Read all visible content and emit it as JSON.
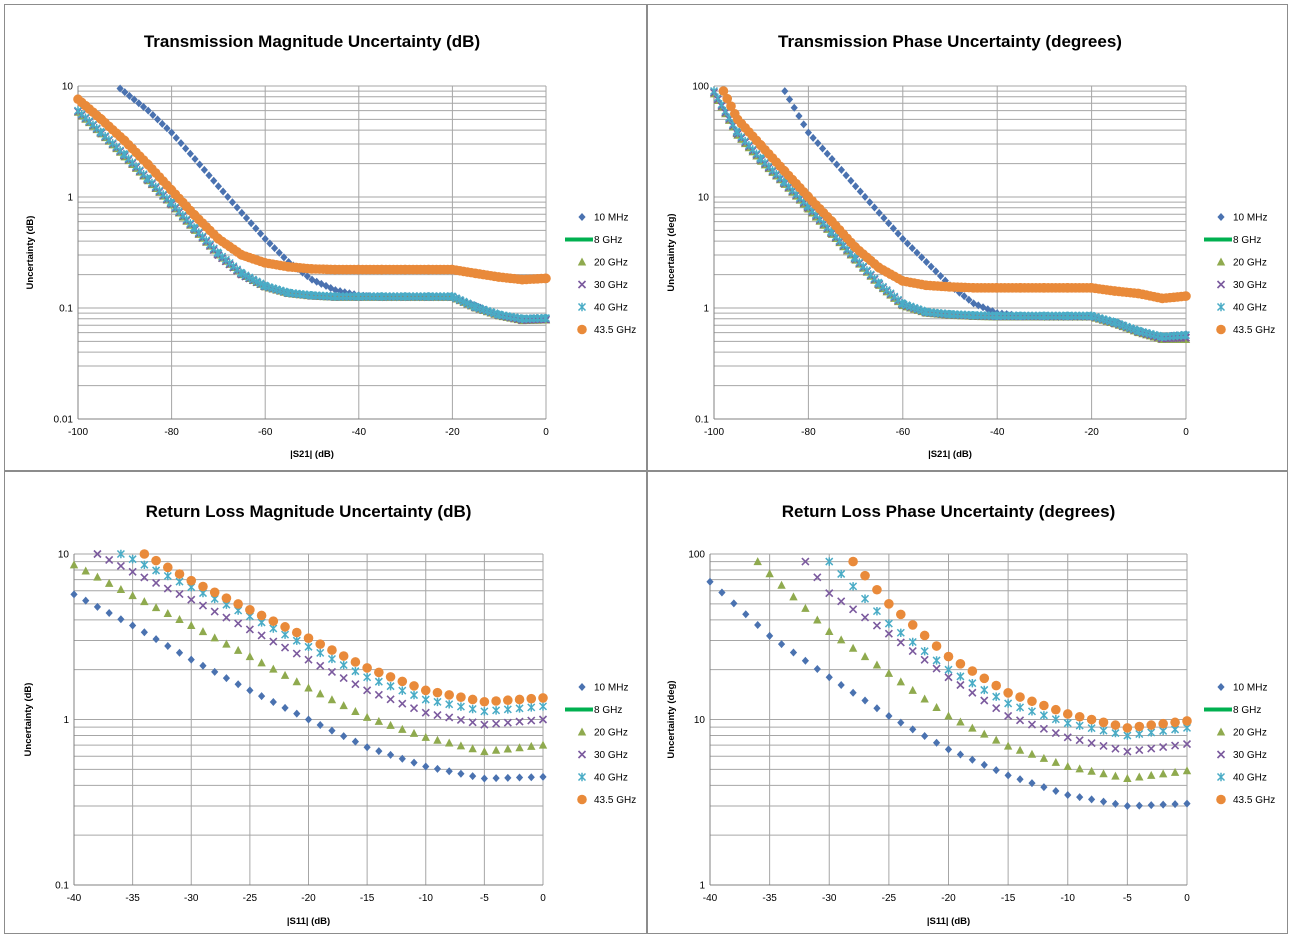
{
  "chart_data": [
    {
      "type": "scatter",
      "title": "Transmission Magnitude Uncertainty (dB)",
      "xlabel": "|S21| (dB)",
      "ylabel": "Uncertainty (dB)",
      "xlim": [
        -100,
        0
      ],
      "ylim": [
        0.01,
        10
      ],
      "yscale": "log",
      "x_ticks": [
        "-100",
        "-80",
        "-60",
        "-40",
        "-20",
        "0"
      ],
      "y_ticks": [
        "0.01",
        "0.1",
        "1",
        "10"
      ],
      "grid": true,
      "legend_position": "right",
      "series": [
        {
          "name": "10 MHz",
          "marker": "diamond",
          "color": "#4a72b0",
          "x": [
            -91,
            -85,
            -80,
            -75,
            -70,
            -65,
            -60,
            -55,
            -50,
            -45,
            -40,
            -35,
            -30,
            -25,
            -20,
            -15,
            -10,
            -5,
            0
          ],
          "y": [
            9.5,
            6.0,
            3.8,
            2.2,
            1.25,
            0.72,
            0.42,
            0.26,
            0.18,
            0.145,
            0.13,
            0.125,
            0.125,
            0.125,
            0.125,
            0.105,
            0.085,
            0.08,
            0.082
          ]
        },
        {
          "name": "8 GHz",
          "marker": "line",
          "color": "#00b050",
          "x": [
            -100,
            -95,
            -90,
            -85,
            -80,
            -75,
            -70,
            -65,
            -60,
            -55,
            -50,
            -45,
            -40,
            -35,
            -30,
            -25,
            -20,
            -15,
            -10,
            -5,
            0
          ],
          "y": [
            5.8,
            3.7,
            2.3,
            1.4,
            0.85,
            0.5,
            0.3,
            0.2,
            0.155,
            0.135,
            0.128,
            0.125,
            0.125,
            0.125,
            0.125,
            0.125,
            0.125,
            0.1,
            0.085,
            0.077,
            0.078
          ]
        },
        {
          "name": "20 GHz",
          "marker": "triangle",
          "color": "#8faa4e",
          "x": [
            -100,
            -95,
            -90,
            -85,
            -80,
            -75,
            -70,
            -65,
            -60,
            -55,
            -50,
            -45,
            -40,
            -35,
            -30,
            -25,
            -20,
            -15,
            -10,
            -5,
            0
          ],
          "y": [
            5.8,
            3.7,
            2.3,
            1.4,
            0.85,
            0.5,
            0.3,
            0.2,
            0.155,
            0.135,
            0.128,
            0.125,
            0.125,
            0.125,
            0.125,
            0.125,
            0.125,
            0.1,
            0.085,
            0.077,
            0.078
          ]
        },
        {
          "name": "30 GHz",
          "marker": "x",
          "color": "#7b5a9e",
          "x": [
            -100,
            -95,
            -90,
            -85,
            -80,
            -75,
            -70,
            -65,
            -60,
            -55,
            -50,
            -45,
            -40,
            -35,
            -30,
            -25,
            -20,
            -15,
            -10,
            -5,
            0
          ],
          "y": [
            5.9,
            3.75,
            2.35,
            1.42,
            0.86,
            0.51,
            0.3,
            0.2,
            0.156,
            0.136,
            0.129,
            0.126,
            0.126,
            0.126,
            0.126,
            0.126,
            0.126,
            0.101,
            0.086,
            0.078,
            0.079
          ]
        },
        {
          "name": "40 GHz",
          "marker": "asterisk",
          "color": "#4aacc6",
          "x": [
            -100,
            -95,
            -90,
            -85,
            -80,
            -75,
            -70,
            -65,
            -60,
            -55,
            -50,
            -45,
            -40,
            -35,
            -30,
            -25,
            -20,
            -15,
            -10,
            -5,
            0
          ],
          "y": [
            6.0,
            3.8,
            2.4,
            1.45,
            0.88,
            0.52,
            0.31,
            0.205,
            0.158,
            0.137,
            0.13,
            0.127,
            0.127,
            0.127,
            0.127,
            0.127,
            0.127,
            0.102,
            0.087,
            0.08,
            0.081
          ]
        },
        {
          "name": "43.5 GHz",
          "marker": "circle",
          "color": "#e98a3a",
          "x": [
            -100,
            -95,
            -90,
            -85,
            -80,
            -75,
            -70,
            -65,
            -60,
            -55,
            -50,
            -45,
            -40,
            -35,
            -30,
            -25,
            -20,
            -15,
            -10,
            -5,
            0
          ],
          "y": [
            7.6,
            5.0,
            3.2,
            1.95,
            1.15,
            0.68,
            0.42,
            0.3,
            0.255,
            0.235,
            0.225,
            0.222,
            0.222,
            0.222,
            0.222,
            0.222,
            0.222,
            0.205,
            0.19,
            0.18,
            0.185
          ]
        }
      ]
    },
    {
      "type": "scatter",
      "title": "Transmission Phase Uncertainty (degrees)",
      "xlabel": "|S21| (dB)",
      "ylabel": "Uncertainty (deg)",
      "xlim": [
        -100,
        0
      ],
      "ylim": [
        0.1,
        100
      ],
      "yscale": "log",
      "x_ticks": [
        "-100",
        "-80",
        "-60",
        "-40",
        "-20",
        "0"
      ],
      "y_ticks": [
        "0.1",
        "1",
        "10",
        "100"
      ],
      "grid": true,
      "legend_position": "right",
      "series": [
        {
          "name": "10 MHz",
          "marker": "diamond",
          "color": "#4a72b0",
          "x": [
            -85,
            -80,
            -75,
            -70,
            -65,
            -60,
            -55,
            -50,
            -45,
            -40,
            -35,
            -30,
            -25,
            -20,
            -15,
            -10,
            -5,
            0
          ],
          "y": [
            90,
            38,
            22,
            12.5,
            7.2,
            4.2,
            2.6,
            1.6,
            1.1,
            0.9,
            0.85,
            0.83,
            0.83,
            0.83,
            0.75,
            0.62,
            0.55,
            0.58
          ]
        },
        {
          "name": "8 GHz",
          "marker": "line",
          "color": "#00b050",
          "x": [
            -100,
            -95,
            -90,
            -85,
            -80,
            -75,
            -70,
            -65,
            -60,
            -55,
            -50,
            -45,
            -40,
            -35,
            -30,
            -25,
            -20,
            -15,
            -10,
            -5,
            0
          ],
          "y": [
            85,
            36,
            21,
            13,
            7.8,
            4.6,
            2.7,
            1.6,
            1.05,
            0.9,
            0.86,
            0.84,
            0.83,
            0.83,
            0.83,
            0.83,
            0.83,
            0.72,
            0.6,
            0.52,
            0.52
          ]
        },
        {
          "name": "20 GHz",
          "marker": "triangle",
          "color": "#8faa4e",
          "x": [
            -100,
            -95,
            -90,
            -85,
            -80,
            -75,
            -70,
            -65,
            -60,
            -55,
            -50,
            -45,
            -40,
            -35,
            -30,
            -25,
            -20,
            -15,
            -10,
            -5,
            0
          ],
          "y": [
            85,
            36,
            21,
            13,
            7.8,
            4.6,
            2.7,
            1.6,
            1.05,
            0.9,
            0.86,
            0.84,
            0.83,
            0.83,
            0.83,
            0.83,
            0.83,
            0.72,
            0.6,
            0.52,
            0.52
          ]
        },
        {
          "name": "30 GHz",
          "marker": "x",
          "color": "#7b5a9e",
          "x": [
            -100,
            -95,
            -90,
            -85,
            -80,
            -75,
            -70,
            -65,
            -60,
            -55,
            -50,
            -45,
            -40,
            -35,
            -30,
            -25,
            -20,
            -15,
            -10,
            -5,
            0
          ],
          "y": [
            87,
            37,
            21.5,
            13.2,
            8.0,
            4.7,
            2.75,
            1.63,
            1.07,
            0.91,
            0.87,
            0.85,
            0.84,
            0.84,
            0.84,
            0.84,
            0.84,
            0.73,
            0.61,
            0.53,
            0.54
          ]
        },
        {
          "name": "40 GHz",
          "marker": "asterisk",
          "color": "#4aacc6",
          "x": [
            -100,
            -95,
            -90,
            -85,
            -80,
            -75,
            -70,
            -65,
            -60,
            -55,
            -50,
            -45,
            -40,
            -35,
            -30,
            -25,
            -20,
            -15,
            -10,
            -5,
            0
          ],
          "y": [
            90,
            38,
            22,
            13.5,
            8.2,
            4.8,
            2.8,
            1.66,
            1.09,
            0.92,
            0.88,
            0.86,
            0.85,
            0.85,
            0.85,
            0.85,
            0.85,
            0.74,
            0.62,
            0.55,
            0.57
          ]
        },
        {
          "name": "43.5 GHz",
          "marker": "circle",
          "color": "#e98a3a",
          "x": [
            -98,
            -95,
            -90,
            -85,
            -80,
            -75,
            -70,
            -65,
            -60,
            -55,
            -50,
            -45,
            -40,
            -35,
            -30,
            -25,
            -20,
            -15,
            -10,
            -5,
            0
          ],
          "y": [
            90,
            50,
            29,
            17,
            10,
            6.0,
            3.5,
            2.3,
            1.75,
            1.6,
            1.55,
            1.52,
            1.52,
            1.52,
            1.52,
            1.52,
            1.52,
            1.42,
            1.35,
            1.22,
            1.28
          ]
        }
      ]
    },
    {
      "type": "scatter",
      "title": "Return Loss Magnitude Uncertainty (dB)",
      "xlabel": "|S11| (dB)",
      "ylabel": "Uncertainty (dB)",
      "xlim": [
        -40,
        0
      ],
      "ylim": [
        0.1,
        10
      ],
      "yscale": "log",
      "x_ticks": [
        "-40",
        "-35",
        "-30",
        "-25",
        "-20",
        "-15",
        "-10",
        "-5",
        "0"
      ],
      "y_ticks": [
        "0.1",
        "1",
        "10"
      ],
      "grid": true,
      "legend_position": "right",
      "series": [
        {
          "name": "10 MHz",
          "marker": "diamond",
          "color": "#4a72b0",
          "x": [
            -40,
            -35,
            -30,
            -25,
            -20,
            -15,
            -10,
            -5,
            0
          ],
          "y": [
            5.7,
            3.7,
            2.3,
            1.5,
            1.0,
            0.68,
            0.52,
            0.44,
            0.45
          ]
        },
        {
          "name": "8 GHz",
          "marker": "line",
          "color": "#00b050",
          "x": [],
          "y": []
        },
        {
          "name": "20 GHz",
          "marker": "triangle",
          "color": "#8faa4e",
          "x": [
            -40,
            -35,
            -30,
            -25,
            -20,
            -15,
            -10,
            -5,
            0
          ],
          "y": [
            8.6,
            5.6,
            3.7,
            2.4,
            1.55,
            1.03,
            0.78,
            0.64,
            0.7
          ]
        },
        {
          "name": "30 GHz",
          "marker": "x",
          "color": "#7b5a9e",
          "x": [
            -38,
            -35,
            -30,
            -25,
            -20,
            -15,
            -10,
            -5,
            0
          ],
          "y": [
            10,
            7.8,
            5.3,
            3.5,
            2.3,
            1.5,
            1.1,
            0.93,
            1.0
          ]
        },
        {
          "name": "40 GHz",
          "marker": "asterisk",
          "color": "#4aacc6",
          "x": [
            -36,
            -35,
            -30,
            -25,
            -20,
            -15,
            -10,
            -5,
            0
          ],
          "y": [
            10,
            9.3,
            6.3,
            4.2,
            2.75,
            1.8,
            1.32,
            1.12,
            1.2
          ]
        },
        {
          "name": "43.5 GHz",
          "marker": "circle",
          "color": "#e98a3a",
          "x": [
            -34,
            -30,
            -25,
            -20,
            -15,
            -10,
            -5,
            0
          ],
          "y": [
            10,
            6.9,
            4.6,
            3.1,
            2.05,
            1.5,
            1.28,
            1.35
          ]
        }
      ]
    },
    {
      "type": "scatter",
      "title": "Return Loss Phase Uncertainty (degrees)",
      "xlabel": "|S11| (dB)",
      "ylabel": "Uncertainty (deg)",
      "xlim": [
        -40,
        0
      ],
      "ylim": [
        1,
        100
      ],
      "yscale": "log",
      "x_ticks": [
        "-40",
        "-35",
        "-30",
        "-25",
        "-20",
        "-15",
        "-10",
        "-5",
        "0"
      ],
      "y_ticks": [
        "1",
        "10",
        "100"
      ],
      "grid": true,
      "legend_position": "right",
      "series": [
        {
          "name": "10 MHz",
          "marker": "diamond",
          "color": "#4a72b0",
          "x": [
            -40,
            -35,
            -30,
            -25,
            -20,
            -15,
            -10,
            -5,
            0
          ],
          "y": [
            68,
            32,
            18,
            10.5,
            6.6,
            4.6,
            3.5,
            3.0,
            3.1
          ]
        },
        {
          "name": "8 GHz",
          "marker": "line",
          "color": "#00b050",
          "x": [],
          "y": []
        },
        {
          "name": "20 GHz",
          "marker": "triangle",
          "color": "#8faa4e",
          "x": [
            -36,
            -35,
            -30,
            -25,
            -20,
            -15,
            -10,
            -5,
            0
          ],
          "y": [
            90,
            76,
            34,
            19,
            10.5,
            6.9,
            5.2,
            4.4,
            4.9
          ]
        },
        {
          "name": "30 GHz",
          "marker": "x",
          "color": "#7b5a9e",
          "x": [
            -32,
            -30,
            -25,
            -20,
            -15,
            -10,
            -5,
            0
          ],
          "y": [
            90,
            58,
            33,
            18,
            10.5,
            7.8,
            6.4,
            7.1
          ]
        },
        {
          "name": "40 GHz",
          "marker": "asterisk",
          "color": "#4aacc6",
          "x": [
            -30,
            -25,
            -20,
            -15,
            -10,
            -5,
            0
          ],
          "y": [
            90,
            38,
            20,
            12.5,
            9.5,
            8.0,
            8.9
          ]
        },
        {
          "name": "43.5 GHz",
          "marker": "circle",
          "color": "#e98a3a",
          "x": [
            -28,
            -25,
            -20,
            -15,
            -10,
            -5,
            0
          ],
          "y": [
            90,
            50,
            24,
            14.5,
            10.8,
            8.9,
            9.8
          ]
        }
      ]
    }
  ]
}
